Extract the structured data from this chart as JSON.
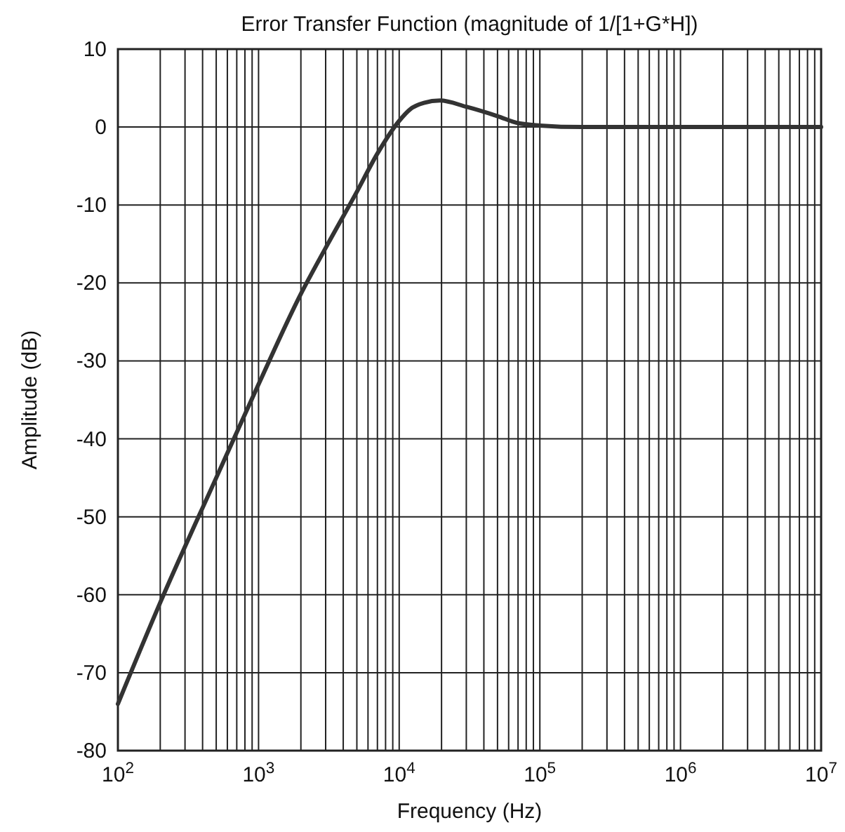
{
  "chart_data": {
    "type": "line",
    "title": "Error Transfer Function (magnitude of 1/[1+G*H])",
    "xlabel": "Frequency (Hz)",
    "ylabel": "Amplitude (dB)",
    "log": "x",
    "grid": true,
    "xlim": [
      100,
      10000000
    ],
    "ylim": [
      -80,
      10
    ],
    "xticks": [
      {
        "value": 100,
        "label": "10$^{2}$"
      },
      {
        "value": 200,
        "label": null
      },
      {
        "value": 300,
        "label": null
      },
      {
        "value": 400,
        "label": null
      },
      {
        "value": 500,
        "label": null
      },
      {
        "value": 600,
        "label": null
      },
      {
        "value": 700,
        "label": null
      },
      {
        "value": 800,
        "label": null
      },
      {
        "value": 900,
        "label": null
      },
      {
        "value": 1000,
        "label": "10$^{3}$"
      },
      {
        "value": 2000,
        "label": null
      },
      {
        "value": 3000,
        "label": null
      },
      {
        "value": 4000,
        "label": null
      },
      {
        "value": 5000,
        "label": null
      },
      {
        "value": 6000,
        "label": null
      },
      {
        "value": 7000,
        "label": null
      },
      {
        "value": 8000,
        "label": null
      },
      {
        "value": 9000,
        "label": null
      },
      {
        "value": 10000,
        "label": "10$^{4}$"
      },
      {
        "value": 20000,
        "label": null
      },
      {
        "value": 30000,
        "label": null
      },
      {
        "value": 40000,
        "label": null
      },
      {
        "value": 50000,
        "label": null
      },
      {
        "value": 60000,
        "label": null
      },
      {
        "value": 70000,
        "label": null
      },
      {
        "value": 80000,
        "label": null
      },
      {
        "value": 90000,
        "label": null
      },
      {
        "value": 100000,
        "label": "10$^{5}$"
      },
      {
        "value": 200000,
        "label": null
      },
      {
        "value": 300000,
        "label": null
      },
      {
        "value": 400000,
        "label": null
      },
      {
        "value": 500000,
        "label": null
      },
      {
        "value": 600000,
        "label": null
      },
      {
        "value": 700000,
        "label": null
      },
      {
        "value": 800000,
        "label": null
      },
      {
        "value": 900000,
        "label": null
      },
      {
        "value": 1000000,
        "label": "10$^{6}$"
      },
      {
        "value": 2000000,
        "label": null
      },
      {
        "value": 3000000,
        "label": null
      },
      {
        "value": 4000000,
        "label": null
      },
      {
        "value": 5000000,
        "label": null
      },
      {
        "value": 6000000,
        "label": null
      },
      {
        "value": 7000000,
        "label": null
      },
      {
        "value": 8000000,
        "label": null
      },
      {
        "value": 9000000,
        "label": null
      },
      {
        "value": 10000000,
        "label": "10$^{7}$"
      }
    ],
    "yticks": [
      -80,
      -70,
      -60,
      -50,
      -40,
      -30,
      -20,
      -10,
      0,
      10
    ],
    "series": [
      {
        "color": "#333333",
        "x": [
          100,
          200,
          500,
          1000,
          2000,
          3000,
          5000,
          7000,
          10000,
          12000,
          15000,
          19500,
          30000,
          50000,
          70000,
          100000,
          200000,
          1000000,
          10000000
        ],
        "values": [
          -74,
          -61,
          -45,
          -33,
          -21.4,
          -15.5,
          -8.3,
          -3.4,
          0.8,
          2.3,
          3.1,
          3.4,
          2.6,
          1.4,
          0.5,
          0.2,
          0,
          0,
          0
        ]
      }
    ]
  }
}
